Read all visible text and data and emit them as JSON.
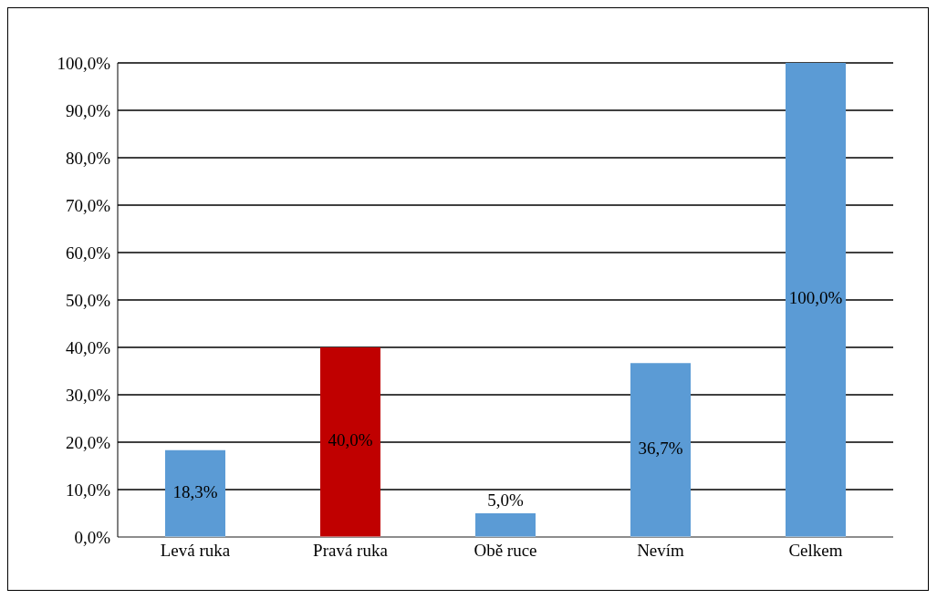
{
  "chart_data": {
    "type": "bar",
    "categories": [
      "Levá ruka",
      "Pravá ruka",
      "Obě ruce",
      "Nevím",
      "Celkem"
    ],
    "values": [
      18.3,
      40.0,
      5.0,
      36.7,
      100.0
    ],
    "colors": [
      "#5b9bd5",
      "#c00000",
      "#5b9bd5",
      "#5b9bd5",
      "#5b9bd5"
    ],
    "value_labels": [
      "18,3%",
      "40,0%",
      "5,0%",
      "36,7%",
      "100,0%"
    ],
    "ylim": [
      0,
      100
    ],
    "yticks": [
      {
        "value": 0,
        "label": "0,0%"
      },
      {
        "value": 10,
        "label": "10,0%"
      },
      {
        "value": 20,
        "label": "20,0%"
      },
      {
        "value": 30,
        "label": "30,0%"
      },
      {
        "value": 40,
        "label": "40,0%"
      },
      {
        "value": 50,
        "label": "50,0%"
      },
      {
        "value": 60,
        "label": "60,0%"
      },
      {
        "value": 70,
        "label": "70,0%"
      },
      {
        "value": 80,
        "label": "80,0%"
      },
      {
        "value": 90,
        "label": "90,0%"
      },
      {
        "value": 100,
        "label": "100,0%"
      }
    ],
    "grid": "y"
  }
}
